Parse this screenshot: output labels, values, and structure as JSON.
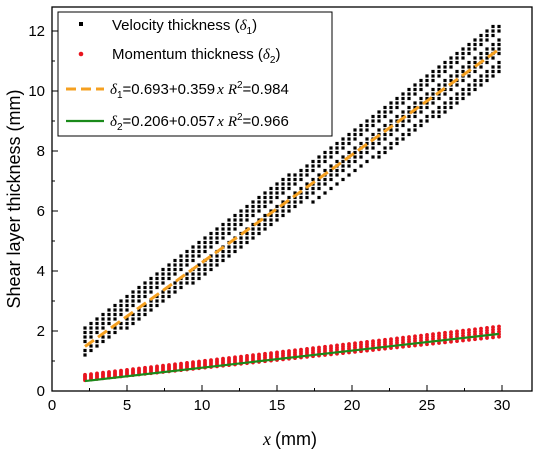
{
  "chart_data": {
    "type": "scatter",
    "title": "",
    "xlabel": {
      "var": "x",
      "unit": "(mm)"
    },
    "ylabel": "Shear layer thickness (mm)",
    "xlim": [
      0,
      32
    ],
    "ylim": [
      0,
      12.8
    ],
    "xticks": [
      "0",
      "5",
      "10",
      "15",
      "20",
      "25",
      "30"
    ],
    "yticks": [
      "0",
      "2",
      "4",
      "6",
      "8",
      "10",
      "12"
    ],
    "legend_position": "top-left",
    "series": [
      {
        "kind": "scatter",
        "color": "#000000",
        "marker": "square",
        "label": {
          "pre": "Velocity thickness (",
          "sym": "δ",
          "sub": "1",
          "post": ")"
        },
        "x_range": [
          2.2,
          29.8
        ],
        "y_at_start": 1.7,
        "y_at_end": 11.4,
        "band_halfwidth": 0.4,
        "y_step": 0.15
      },
      {
        "kind": "scatter",
        "color": "#e8141e",
        "marker": "circle",
        "label": {
          "pre": "Momentum thickness (",
          "sym": "δ",
          "sub": "2",
          "post": ")"
        },
        "x_range": [
          2.2,
          29.8
        ],
        "y_at_start": 0.45,
        "y_at_end": 1.98,
        "band_halfwidth": 0.09
      },
      {
        "kind": "line",
        "style": "dashed",
        "color": "#f5a020",
        "label": {
          "sym": "δ",
          "sub": "1",
          "eq": "=0.693+0.359",
          "var": "x",
          "r2_label": "R",
          "r2_exp": "2",
          "r2_val": "=0.984"
        },
        "intercept": 0.693,
        "slope": 0.359,
        "x_range": [
          2.2,
          29.8
        ]
      },
      {
        "kind": "line",
        "style": "solid",
        "color": "#1a8a1a",
        "label": {
          "sym": "δ",
          "sub": "2",
          "eq": "=0.206+0.057",
          "var": "x",
          "r2_label": "R",
          "r2_exp": "2",
          "r2_val": "=0.966"
        },
        "intercept": 0.206,
        "slope": 0.057,
        "x_range": [
          2.2,
          29.8
        ]
      }
    ]
  }
}
